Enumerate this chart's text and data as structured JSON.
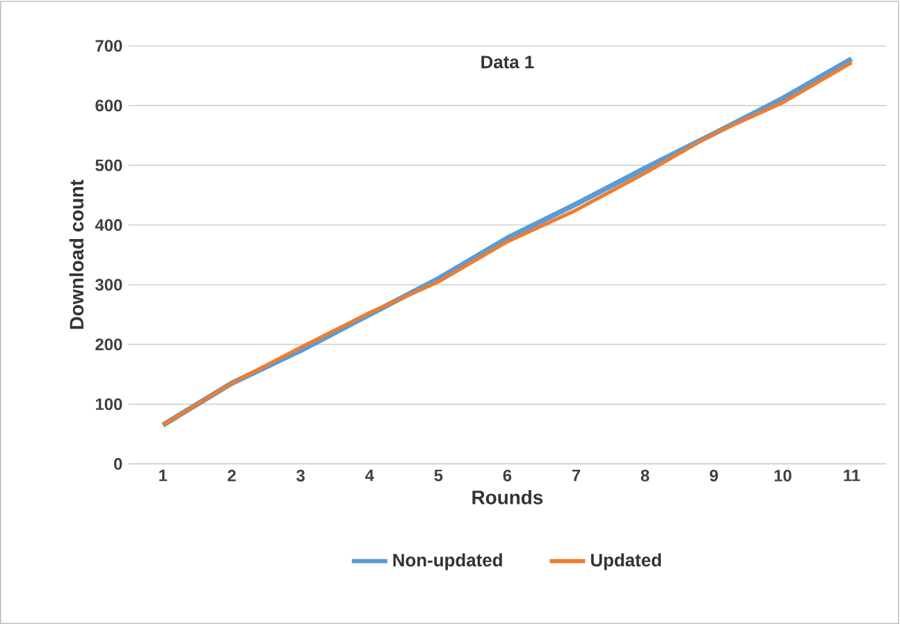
{
  "chart_data": {
    "type": "line",
    "title": "Data 1",
    "xlabel": "Rounds",
    "ylabel": "Download count",
    "categories": [
      "1",
      "2",
      "3",
      "4",
      "5",
      "6",
      "7",
      "8",
      "9",
      "10",
      "11"
    ],
    "series": [
      {
        "name": "Non-updated",
        "color": "#5b9bd5",
        "values": [
          65,
          135,
          190,
          250,
          310,
          378,
          435,
          495,
          553,
          612,
          678
        ]
      },
      {
        "name": "Updated",
        "color": "#ed7d31",
        "values": [
          65,
          135,
          195,
          253,
          305,
          372,
          425,
          487,
          553,
          605,
          672
        ]
      }
    ],
    "ylim": [
      0,
      700
    ],
    "yticks": [
      0,
      100,
      200,
      300,
      400,
      500,
      600,
      700
    ],
    "grid": "y",
    "legend": "bottom",
    "marker": "none",
    "line_style": "solid"
  }
}
